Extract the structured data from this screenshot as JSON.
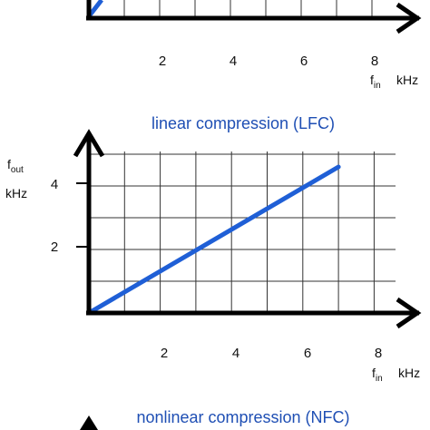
{
  "colors": {
    "curve": "#1f5fd6",
    "title": "#1f4fb4",
    "axis": "#000000",
    "grid": "#333333"
  },
  "chart_data": [
    {
      "type": "line",
      "title": "",
      "xlabel": "f",
      "xlabel_sub": "in",
      "xunit": "kHz",
      "xticks": [
        "2",
        "4",
        "6",
        "8"
      ],
      "xlim": [
        0,
        8.6
      ],
      "grid": true,
      "note": "top panel, partially cropped"
    },
    {
      "type": "line",
      "title": "linear compression (LFC)",
      "xlabel": "f",
      "xlabel_sub": "in",
      "xunit": "kHz",
      "ylabel": "f",
      "ylabel_sub": "out",
      "yunit": "kHz",
      "xticks": [
        "2",
        "4",
        "6",
        "8"
      ],
      "yticks": [
        "2",
        "4"
      ],
      "xlim": [
        0,
        8.6
      ],
      "ylim": [
        0,
        5
      ],
      "grid": true,
      "series": [
        {
          "x": [
            0,
            7
          ],
          "y": [
            0,
            4.6
          ]
        }
      ]
    },
    {
      "type": "line",
      "title": "nonlinear compression (NFC)",
      "note": "bottom panel, cropped"
    }
  ]
}
